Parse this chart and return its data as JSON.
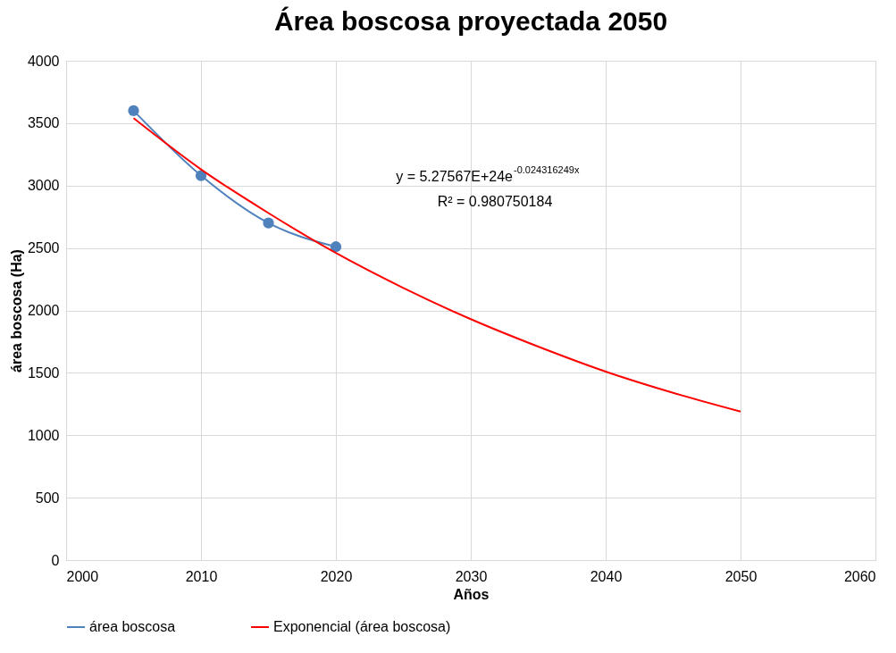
{
  "chart_data": {
    "type": "line",
    "title": "Área boscosa proyectada 2050",
    "xlabel": "Años",
    "ylabel": "área boscosa (Ha)",
    "series": [
      {
        "name": "área boscosa",
        "color": "#4f81bd",
        "marker": "circle",
        "x": [
          2005,
          2010,
          2015,
          2020
        ],
        "values": [
          3600,
          3080,
          2700,
          2510
        ]
      },
      {
        "name": "Exponencial (área boscosa)",
        "color": "#ff0000",
        "marker": "none",
        "x": [
          2005,
          2010,
          2015,
          2020,
          2025,
          2030,
          2035,
          2040,
          2045,
          2050
        ],
        "values": [
          3540,
          3130,
          2780,
          2460,
          2180,
          1930,
          1710,
          1510,
          1340,
          1190
        ]
      }
    ],
    "xlim": [
      2000,
      2060
    ],
    "xticks": [
      2000,
      2010,
      2020,
      2030,
      2040,
      2050,
      2060
    ],
    "ylim": [
      0,
      4000
    ],
    "yticks": [
      0,
      500,
      1000,
      1500,
      2000,
      2500,
      3000,
      3500,
      4000
    ],
    "grid": true,
    "legend": "bottom",
    "annotations": [
      "y = 5.27567E+24e$^{-0.024316249x}$",
      "R² = 0.980750184"
    ]
  }
}
